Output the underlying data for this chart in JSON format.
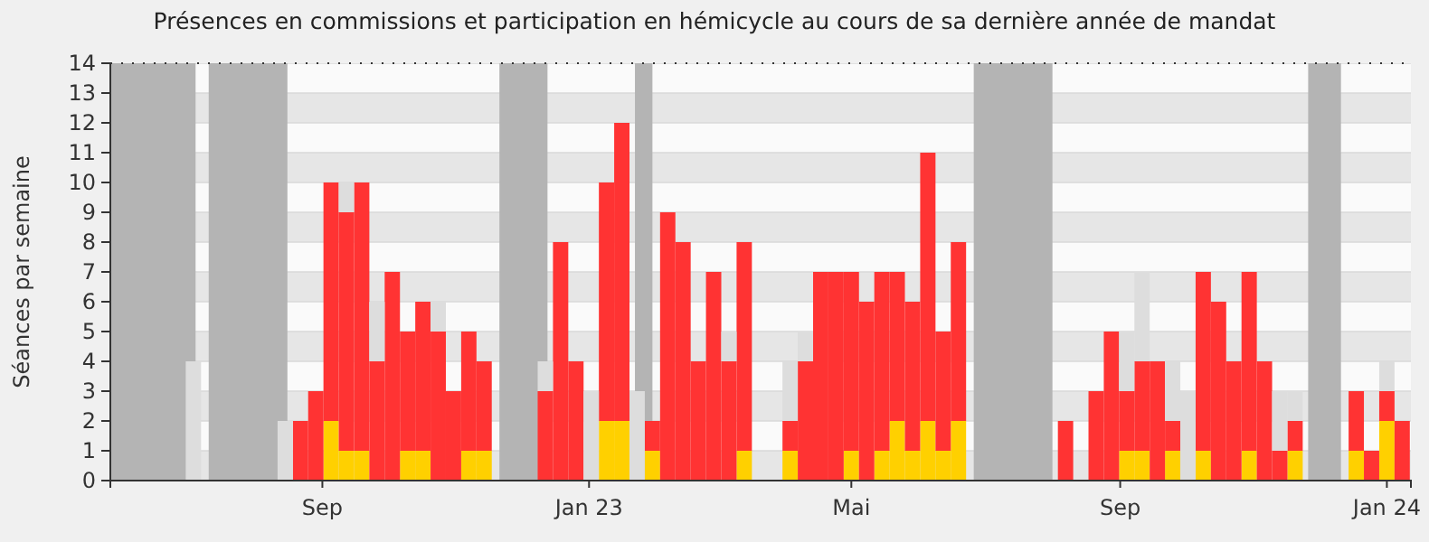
{
  "chart_data": {
    "type": "bar",
    "title": "Présences en commissions et participation en hémicycle au cours de sa dernière année de mandat",
    "ylabel": "Séances par semaine",
    "stacked": true,
    "grid": "y",
    "x": [
      "2022-05-30",
      "2022-06-06",
      "2022-06-13",
      "2022-06-20",
      "2022-06-27",
      "2022-07-04",
      "2022-07-11",
      "2022-07-18",
      "2022-07-25",
      "2022-08-01",
      "2022-08-08",
      "2022-08-15",
      "2022-08-22",
      "2022-08-29",
      "2022-09-05",
      "2022-09-12",
      "2022-09-19",
      "2022-09-26",
      "2022-10-03",
      "2022-10-10",
      "2022-10-17",
      "2022-10-24",
      "2022-10-31",
      "2022-11-07",
      "2022-11-14",
      "2022-11-21",
      "2022-11-28",
      "2022-12-05",
      "2022-12-12",
      "2022-12-19",
      "2022-12-26",
      "2023-01-02",
      "2023-01-09",
      "2023-01-16",
      "2023-01-23",
      "2023-01-30",
      "2023-02-06",
      "2023-02-13",
      "2023-02-20",
      "2023-02-27",
      "2023-03-06",
      "2023-03-13",
      "2023-03-20",
      "2023-03-27",
      "2023-04-03",
      "2023-04-10",
      "2023-04-17",
      "2023-04-24",
      "2023-05-01",
      "2023-05-08",
      "2023-05-15",
      "2023-05-22",
      "2023-05-29",
      "2023-06-05",
      "2023-06-12",
      "2023-06-19",
      "2023-06-26",
      "2023-07-03",
      "2023-07-10",
      "2023-07-17",
      "2023-07-24",
      "2023-07-31",
      "2023-08-07",
      "2023-08-14",
      "2023-08-21",
      "2023-08-28",
      "2023-09-04",
      "2023-09-11",
      "2023-09-18",
      "2023-09-25",
      "2023-10-02",
      "2023-10-09",
      "2023-10-16",
      "2023-10-23",
      "2023-10-30",
      "2023-11-06",
      "2023-11-13",
      "2023-11-20",
      "2023-11-27",
      "2023-12-04",
      "2023-12-11",
      "2023-12-18",
      "2023-12-25",
      "2024-01-01",
      "2024-01-08"
    ],
    "series": [
      {
        "color": "#ffd000",
        "values": [
          0,
          0,
          0,
          0,
          0,
          0,
          0,
          0,
          0,
          0,
          0,
          0,
          0,
          0,
          2,
          1,
          1,
          0,
          0,
          1,
          1,
          0,
          0,
          1,
          1,
          0,
          0,
          0,
          0,
          0,
          0,
          0,
          2,
          2,
          0,
          1,
          0,
          0,
          0,
          0,
          0,
          1,
          0,
          0,
          1,
          0,
          0,
          0,
          1,
          0,
          1,
          2,
          1,
          2,
          1,
          2,
          0,
          0,
          0,
          0,
          0,
          0,
          0,
          0,
          0,
          0,
          1,
          1,
          0,
          1,
          0,
          1,
          0,
          0,
          1,
          0,
          0,
          1,
          0,
          0,
          0,
          1,
          0,
          2,
          0
        ]
      },
      {
        "color": "#ff3333",
        "values": [
          0,
          0,
          0,
          0,
          0,
          0,
          0,
          0,
          0,
          0,
          0,
          0,
          2,
          3,
          8,
          8,
          9,
          4,
          7,
          4,
          5,
          5,
          3,
          4,
          3,
          0,
          0,
          0,
          3,
          8,
          4,
          0,
          8,
          10,
          0,
          1,
          9,
          8,
          4,
          7,
          4,
          7,
          0,
          0,
          1,
          4,
          7,
          7,
          6,
          6,
          6,
          5,
          5,
          9,
          4,
          6,
          0,
          0,
          0,
          0,
          0,
          0,
          2,
          0,
          3,
          5,
          2,
          3,
          4,
          1,
          0,
          6,
          6,
          4,
          6,
          4,
          1,
          1,
          0,
          0,
          0,
          2,
          1,
          1,
          2
        ]
      },
      {
        "color": "#dddddd",
        "values": [
          null,
          null,
          null,
          null,
          null,
          4,
          null,
          null,
          null,
          null,
          null,
          2,
          null,
          null,
          null,
          1,
          null,
          2,
          null,
          null,
          null,
          1,
          null,
          null,
          null,
          null,
          null,
          null,
          1,
          null,
          null,
          3,
          null,
          null,
          3,
          null,
          null,
          null,
          null,
          null,
          1,
          null,
          null,
          null,
          2,
          1,
          null,
          null,
          null,
          null,
          null,
          null,
          null,
          null,
          null,
          null,
          null,
          null,
          null,
          null,
          null,
          null,
          null,
          null,
          null,
          null,
          2,
          3,
          null,
          2,
          3,
          null,
          null,
          null,
          null,
          null,
          2,
          1,
          null,
          null,
          null,
          null,
          null,
          1,
          null
        ]
      }
    ],
    "xlim": [
      "2022-05-27",
      "2024-01-12"
    ],
    "xticks": [
      {
        "value": "2022-09-01",
        "label": "Sep"
      },
      {
        "value": "2023-01-01",
        "label": "Jan 23"
      },
      {
        "value": "2023-05-01",
        "label": "Mai"
      },
      {
        "value": "2023-09-01",
        "label": "Sep"
      },
      {
        "value": "2024-01-01",
        "label": "Jan 24"
      }
    ],
    "ylim": [
      0,
      14
    ],
    "yticks": [
      0,
      1,
      2,
      3,
      4,
      5,
      6,
      7,
      8,
      9,
      10,
      11,
      12,
      13,
      14
    ],
    "bands": [
      {
        "axis": "x",
        "from": "2022-05-27",
        "to": "2022-07-05",
        "color": "#b4b4b4"
      },
      {
        "axis": "x",
        "from": "2022-07-11",
        "to": "2022-08-16",
        "color": "#b4b4b4"
      },
      {
        "axis": "x",
        "from": "2022-11-21",
        "to": "2022-12-13",
        "color": "#b4b4b4"
      },
      {
        "axis": "x",
        "from": "2023-01-22",
        "to": "2023-01-30",
        "color": "#b4b4b4"
      },
      {
        "axis": "x",
        "from": "2023-06-26",
        "to": "2023-08-01",
        "color": "#b4b4b4"
      },
      {
        "axis": "x",
        "from": "2023-11-26",
        "to": "2023-12-11",
        "color": "#b4b4b4"
      }
    ]
  }
}
